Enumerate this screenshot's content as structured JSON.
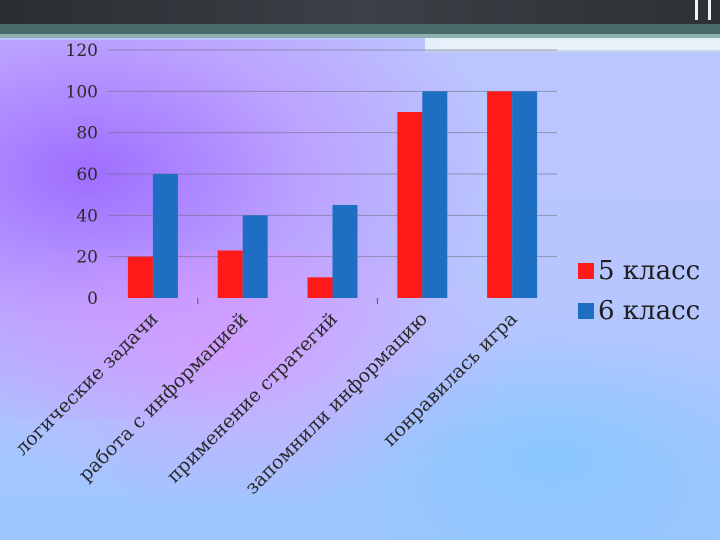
{
  "chart_data": {
    "type": "bar",
    "categories": [
      "логические задачи",
      "работа с информацией",
      "применение стратегий",
      "запомнили информацию",
      "понравилась игра"
    ],
    "series": [
      {
        "name": "5 класс",
        "values": [
          20,
          23,
          10,
          90,
          100
        ],
        "color": "#ff1a1a"
      },
      {
        "name": "6 класс",
        "values": [
          60,
          40,
          45,
          100,
          100
        ],
        "color": "#1e6fc4"
      }
    ],
    "ylim": [
      0,
      120
    ],
    "yticks": [
      0,
      20,
      40,
      60,
      80,
      100,
      120
    ],
    "grid": true,
    "legend_position": "right",
    "title": "",
    "xlabel": "",
    "ylabel": ""
  },
  "legend": {
    "items": [
      {
        "label": "5 класс",
        "color": "#ff1a1a"
      },
      {
        "label": "6 класс",
        "color": "#1e6fc4"
      }
    ]
  }
}
